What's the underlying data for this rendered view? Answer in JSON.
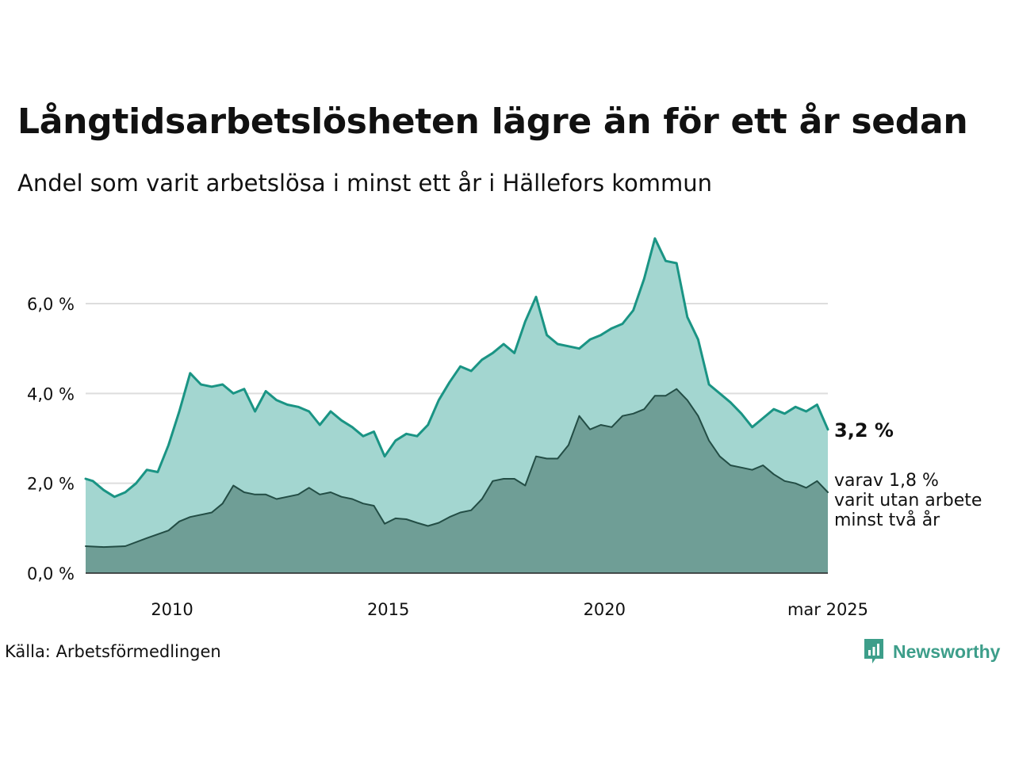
{
  "header": {
    "title": "Långtidsarbetslösheten lägre än för ett år sedan",
    "subtitle": "Andel som varit arbetslösa i minst ett år i Hällefors kommun"
  },
  "footer": {
    "source": "Källa: Arbetsförmedlingen",
    "logo_text": "Newsworthy"
  },
  "colors": {
    "series1_line": "#1a9484",
    "series1_fill": "#a3d6d0",
    "series2_line": "#234d45",
    "series2_fill": "#6f9e96",
    "grid": "#dddddd",
    "logo": "#3d9e8a"
  },
  "chart_data": {
    "type": "area",
    "x_start": "2008-01",
    "x_end": "2025-03",
    "ylim": [
      0,
      7.5
    ],
    "yticks": [
      {
        "value": 0,
        "label": "0,0 %"
      },
      {
        "value": 2,
        "label": "2,0 %"
      },
      {
        "value": 4,
        "label": "4,0 %"
      },
      {
        "value": 6,
        "label": "6,0 %"
      }
    ],
    "xticks": [
      {
        "date": "2010-01",
        "label": "2010"
      },
      {
        "date": "2015-01",
        "label": "2015"
      },
      {
        "date": "2020-01",
        "label": "2020"
      },
      {
        "date": "2025-03",
        "label": "mar 2025"
      }
    ],
    "grid": true,
    "series": [
      {
        "end_label": "3,2 %",
        "points": [
          [
            "2008-01",
            2.1
          ],
          [
            "2008-03",
            2.05
          ],
          [
            "2008-06",
            1.85
          ],
          [
            "2008-09",
            1.7
          ],
          [
            "2008-12",
            1.8
          ],
          [
            "2009-03",
            2.0
          ],
          [
            "2009-06",
            2.3
          ],
          [
            "2009-09",
            2.25
          ],
          [
            "2009-12",
            2.85
          ],
          [
            "2010-03",
            3.6
          ],
          [
            "2010-06",
            4.45
          ],
          [
            "2010-09",
            4.2
          ],
          [
            "2010-12",
            4.15
          ],
          [
            "2011-03",
            4.2
          ],
          [
            "2011-06",
            4.0
          ],
          [
            "2011-09",
            4.1
          ],
          [
            "2011-12",
            3.6
          ],
          [
            "2012-03",
            4.05
          ],
          [
            "2012-06",
            3.85
          ],
          [
            "2012-09",
            3.75
          ],
          [
            "2012-12",
            3.7
          ],
          [
            "2013-03",
            3.6
          ],
          [
            "2013-06",
            3.3
          ],
          [
            "2013-09",
            3.6
          ],
          [
            "2013-12",
            3.4
          ],
          [
            "2014-03",
            3.25
          ],
          [
            "2014-06",
            3.05
          ],
          [
            "2014-09",
            3.15
          ],
          [
            "2014-12",
            2.6
          ],
          [
            "2015-03",
            2.95
          ],
          [
            "2015-06",
            3.1
          ],
          [
            "2015-09",
            3.05
          ],
          [
            "2015-12",
            3.3
          ],
          [
            "2016-03",
            3.85
          ],
          [
            "2016-06",
            4.25
          ],
          [
            "2016-09",
            4.6
          ],
          [
            "2016-12",
            4.5
          ],
          [
            "2017-03",
            4.75
          ],
          [
            "2017-06",
            4.9
          ],
          [
            "2017-09",
            5.1
          ],
          [
            "2017-12",
            4.9
          ],
          [
            "2018-03",
            5.6
          ],
          [
            "2018-06",
            6.15
          ],
          [
            "2018-09",
            5.3
          ],
          [
            "2018-12",
            5.1
          ],
          [
            "2019-03",
            5.05
          ],
          [
            "2019-06",
            5.0
          ],
          [
            "2019-09",
            5.2
          ],
          [
            "2019-12",
            5.3
          ],
          [
            "2020-03",
            5.45
          ],
          [
            "2020-06",
            5.55
          ],
          [
            "2020-09",
            5.85
          ],
          [
            "2020-12",
            6.55
          ],
          [
            "2021-03",
            7.45
          ],
          [
            "2021-06",
            6.95
          ],
          [
            "2021-09",
            6.9
          ],
          [
            "2021-12",
            5.7
          ],
          [
            "2022-03",
            5.2
          ],
          [
            "2022-06",
            4.2
          ],
          [
            "2022-09",
            4.0
          ],
          [
            "2022-12",
            3.8
          ],
          [
            "2023-03",
            3.55
          ],
          [
            "2023-06",
            3.25
          ],
          [
            "2023-09",
            3.45
          ],
          [
            "2023-12",
            3.65
          ],
          [
            "2024-03",
            3.55
          ],
          [
            "2024-06",
            3.7
          ],
          [
            "2024-09",
            3.6
          ],
          [
            "2024-12",
            3.75
          ],
          [
            "2025-03",
            3.2
          ]
        ]
      },
      {
        "end_label_lines": [
          "varav 1,8 %",
          "varit utan arbete",
          "minst två år"
        ],
        "points": [
          [
            "2008-01",
            0.6
          ],
          [
            "2008-06",
            0.58
          ],
          [
            "2008-12",
            0.6
          ],
          [
            "2009-06",
            0.78
          ],
          [
            "2009-12",
            0.95
          ],
          [
            "2010-03",
            1.15
          ],
          [
            "2010-06",
            1.25
          ],
          [
            "2010-12",
            1.35
          ],
          [
            "2011-03",
            1.55
          ],
          [
            "2011-06",
            1.95
          ],
          [
            "2011-09",
            1.8
          ],
          [
            "2011-12",
            1.75
          ],
          [
            "2012-03",
            1.75
          ],
          [
            "2012-06",
            1.65
          ],
          [
            "2012-09",
            1.7
          ],
          [
            "2012-12",
            1.75
          ],
          [
            "2013-03",
            1.9
          ],
          [
            "2013-06",
            1.75
          ],
          [
            "2013-09",
            1.8
          ],
          [
            "2013-12",
            1.7
          ],
          [
            "2014-03",
            1.65
          ],
          [
            "2014-06",
            1.55
          ],
          [
            "2014-09",
            1.5
          ],
          [
            "2014-12",
            1.1
          ],
          [
            "2015-03",
            1.22
          ],
          [
            "2015-06",
            1.2
          ],
          [
            "2015-09",
            1.12
          ],
          [
            "2015-12",
            1.05
          ],
          [
            "2016-03",
            1.12
          ],
          [
            "2016-06",
            1.25
          ],
          [
            "2016-09",
            1.35
          ],
          [
            "2016-12",
            1.4
          ],
          [
            "2017-03",
            1.65
          ],
          [
            "2017-06",
            2.05
          ],
          [
            "2017-09",
            2.1
          ],
          [
            "2017-12",
            2.1
          ],
          [
            "2018-03",
            1.95
          ],
          [
            "2018-06",
            2.6
          ],
          [
            "2018-09",
            2.55
          ],
          [
            "2018-12",
            2.55
          ],
          [
            "2019-03",
            2.85
          ],
          [
            "2019-06",
            3.5
          ],
          [
            "2019-09",
            3.2
          ],
          [
            "2019-12",
            3.3
          ],
          [
            "2020-03",
            3.25
          ],
          [
            "2020-06",
            3.5
          ],
          [
            "2020-09",
            3.55
          ],
          [
            "2020-12",
            3.65
          ],
          [
            "2021-03",
            3.95
          ],
          [
            "2021-06",
            3.95
          ],
          [
            "2021-09",
            4.1
          ],
          [
            "2021-12",
            3.85
          ],
          [
            "2022-03",
            3.5
          ],
          [
            "2022-06",
            2.95
          ],
          [
            "2022-09",
            2.6
          ],
          [
            "2022-12",
            2.4
          ],
          [
            "2023-03",
            2.35
          ],
          [
            "2023-06",
            2.3
          ],
          [
            "2023-09",
            2.4
          ],
          [
            "2023-12",
            2.2
          ],
          [
            "2024-03",
            2.05
          ],
          [
            "2024-06",
            2.0
          ],
          [
            "2024-09",
            1.9
          ],
          [
            "2024-12",
            2.05
          ],
          [
            "2025-03",
            1.8
          ]
        ]
      }
    ]
  }
}
